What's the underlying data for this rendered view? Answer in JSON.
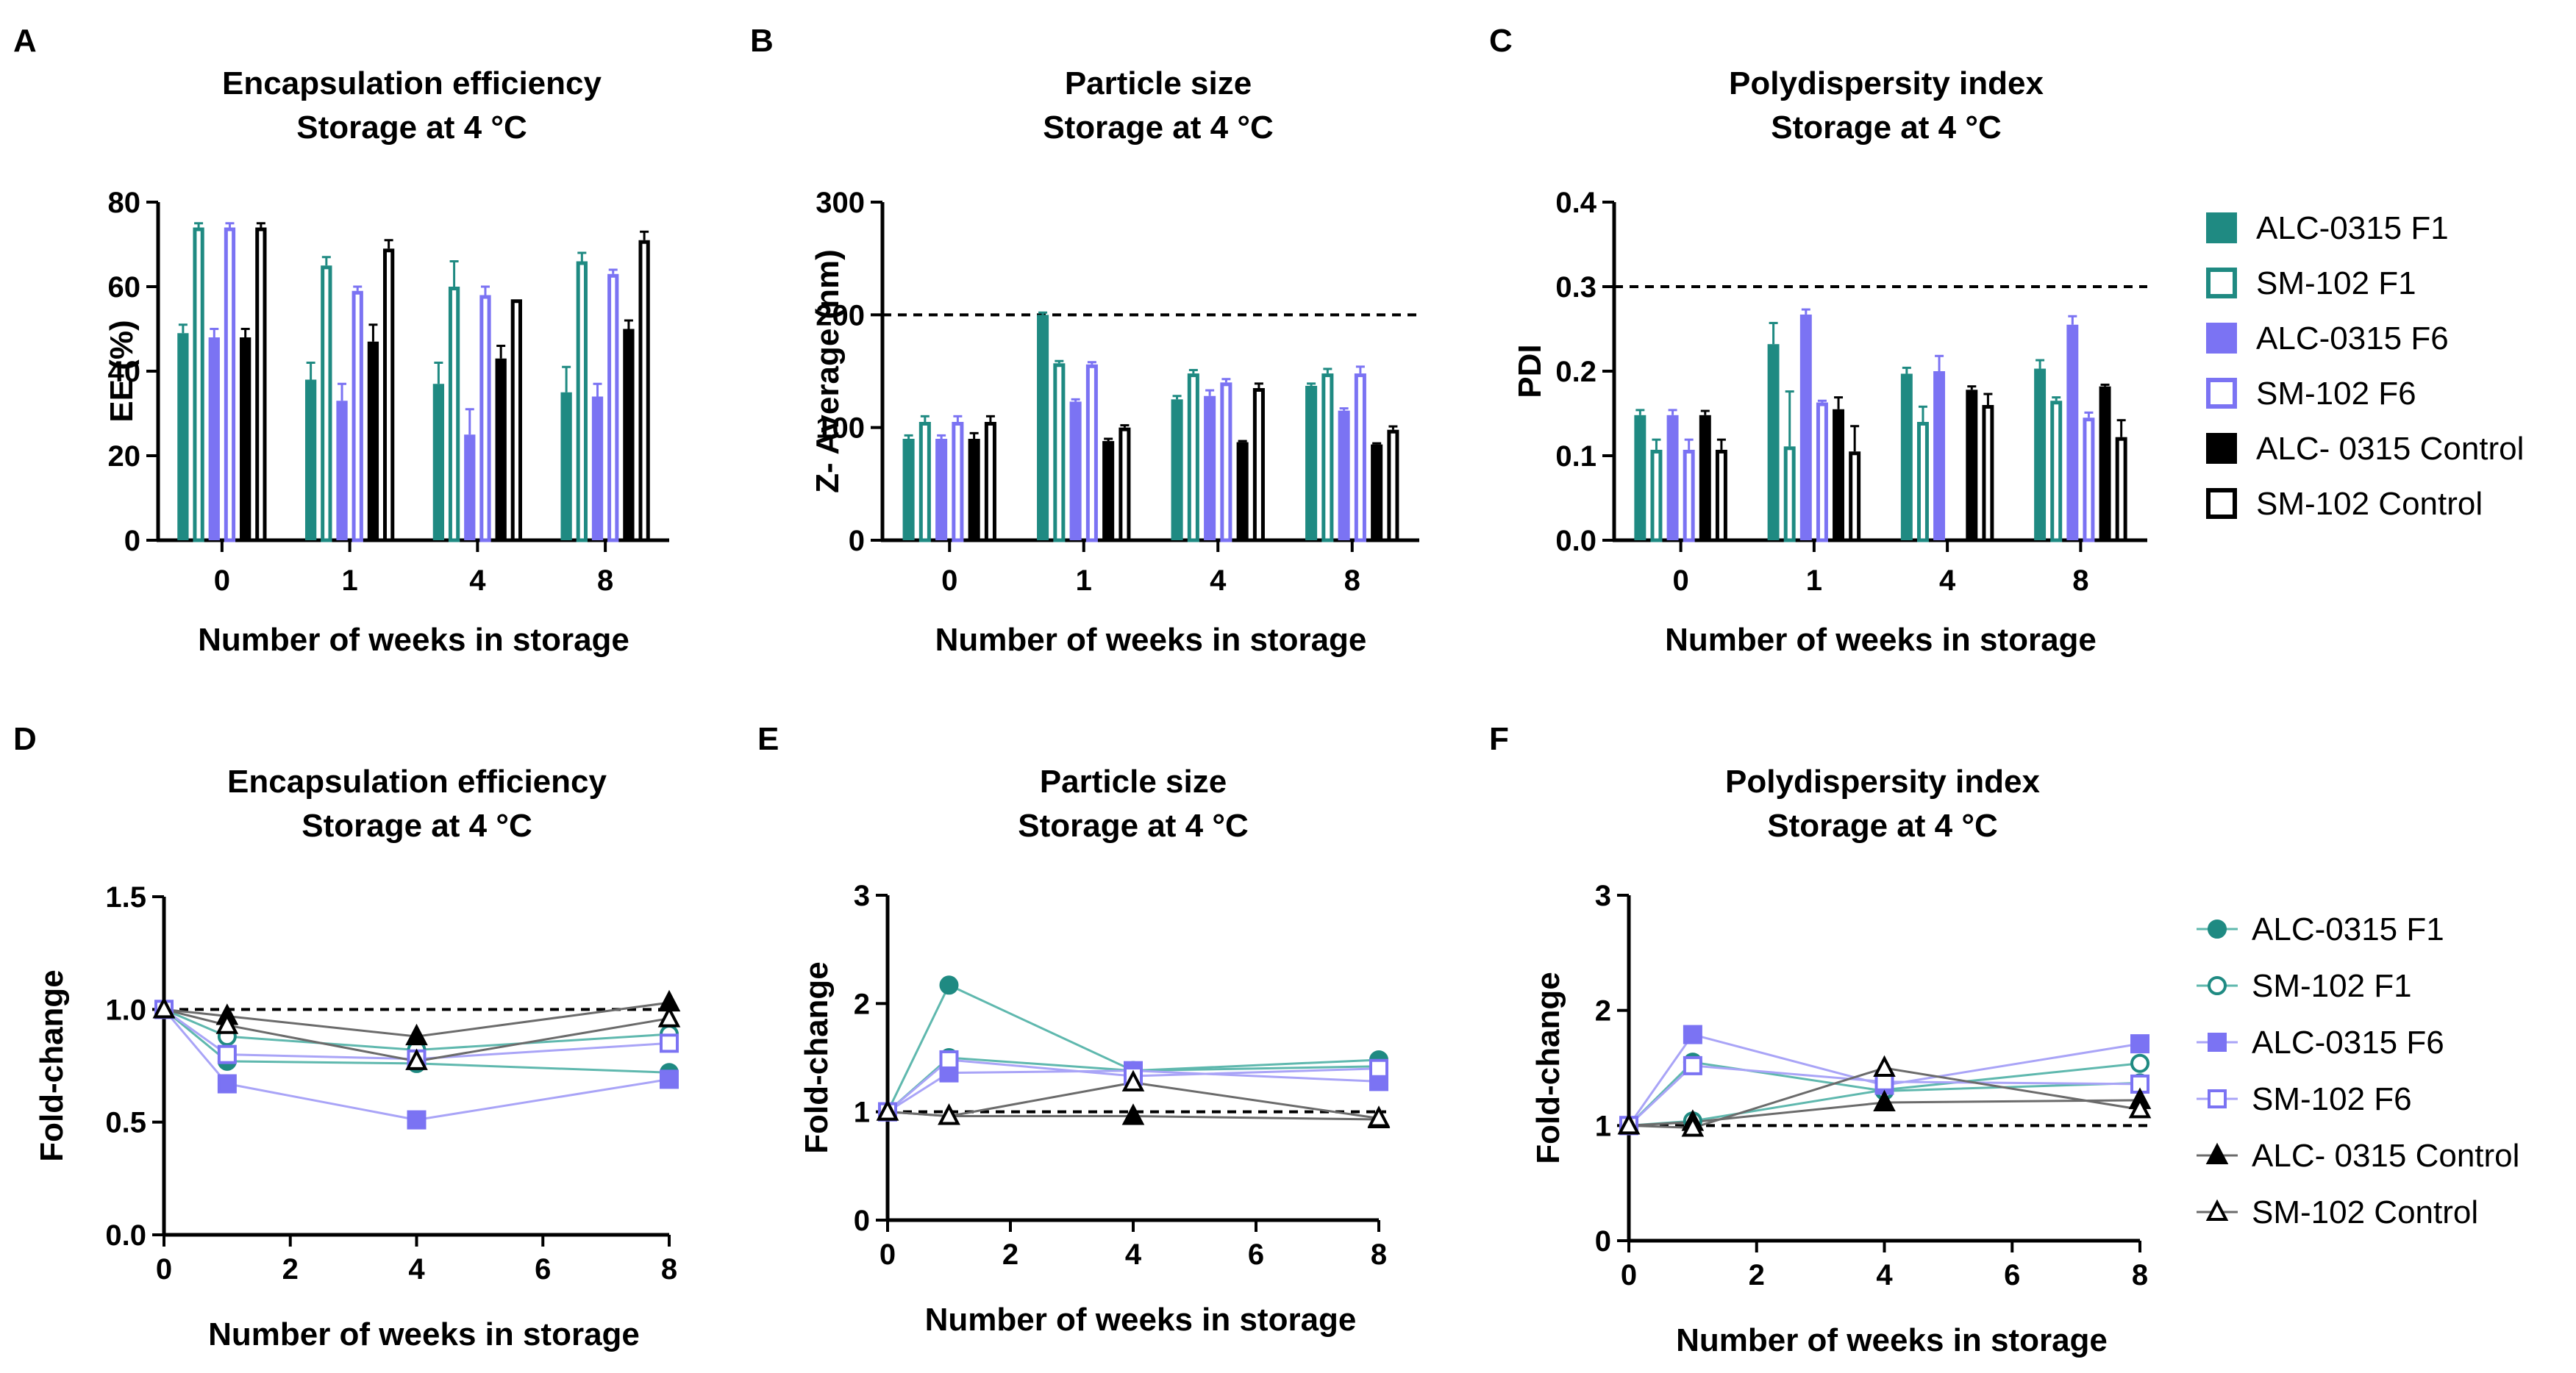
{
  "colors": {
    "alc_f1": "#1f8a82",
    "sm_f1": "#1f8a82",
    "alc_f6": "#7b73f3",
    "sm_f6": "#7b73f3",
    "alc_ctrl": "#000000",
    "sm_ctrl": "#000000",
    "line_alc_f1": "#5fb8ae",
    "line_f6": "#a9a4f7",
    "line_ctrl": "#6b6b6b"
  },
  "legend_top": {
    "items": [
      {
        "key": "alc_f1",
        "label": "ALC-0315 F1",
        "style": "filled"
      },
      {
        "key": "sm_f1",
        "label": "SM-102 F1",
        "style": "open"
      },
      {
        "key": "alc_f6",
        "label": "ALC-0315 F6",
        "style": "filled"
      },
      {
        "key": "sm_f6",
        "label": "SM-102 F6",
        "style": "open"
      },
      {
        "key": "alc_ctrl",
        "label": "ALC- 0315 Control",
        "style": "filled"
      },
      {
        "key": "sm_ctrl",
        "label": "SM-102 Control",
        "style": "open"
      }
    ]
  },
  "legend_bottom": {
    "items": [
      {
        "key": "alc_f1",
        "label": "ALC-0315 F1",
        "marker": "circle",
        "fill": true
      },
      {
        "key": "sm_f1",
        "label": "SM-102 F1",
        "marker": "circle",
        "fill": false
      },
      {
        "key": "alc_f6",
        "label": "ALC-0315 F6",
        "marker": "square",
        "fill": true
      },
      {
        "key": "sm_f6",
        "label": "SM-102 F6",
        "marker": "square",
        "fill": false
      },
      {
        "key": "alc_ctrl",
        "label": "ALC- 0315 Control",
        "marker": "triangle",
        "fill": true
      },
      {
        "key": "sm_ctrl",
        "label": "SM-102 Control",
        "marker": "triangle",
        "fill": false
      }
    ]
  },
  "chart_data": [
    {
      "panel": "A",
      "type": "bar",
      "title": [
        "Encapsulation efficiency",
        "Storage at 4 °C"
      ],
      "xlabel": "Number of weeks in storage",
      "ylabel": "EE (%)",
      "categories": [
        "0",
        "1",
        "4",
        "8"
      ],
      "ylim": [
        0,
        80
      ],
      "yticks": [
        0,
        20,
        40,
        60,
        80
      ],
      "reference": null,
      "series": [
        {
          "key": "alc_f1",
          "name": "ALC-0315 F1",
          "values": [
            49,
            38,
            37,
            35
          ],
          "errors": [
            2,
            4,
            5,
            6
          ]
        },
        {
          "key": "sm_f1",
          "name": "SM-102 F1",
          "values": [
            74,
            65,
            60,
            66
          ],
          "errors": [
            1,
            2,
            6,
            2
          ]
        },
        {
          "key": "alc_f6",
          "name": "ALC-0315 F6",
          "values": [
            48,
            33,
            25,
            34
          ],
          "errors": [
            2,
            4,
            6,
            3
          ]
        },
        {
          "key": "sm_f6",
          "name": "SM-102 F6",
          "values": [
            74,
            59,
            58,
            63
          ],
          "errors": [
            1,
            1,
            2,
            1
          ]
        },
        {
          "key": "alc_ctrl",
          "name": "ALC- 0315 Control",
          "values": [
            48,
            47,
            43,
            50
          ],
          "errors": [
            2,
            4,
            3,
            2
          ]
        },
        {
          "key": "sm_ctrl",
          "name": "SM-102 Control",
          "values": [
            74,
            69,
            57,
            71
          ],
          "errors": [
            1,
            2,
            0,
            2
          ]
        }
      ]
    },
    {
      "panel": "B",
      "type": "bar",
      "title": [
        "Particle size",
        "Storage at 4 °C"
      ],
      "xlabel": "Number of weeks in storage",
      "ylabel": "Z- Average (nm)",
      "categories": [
        "0",
        "1",
        "4",
        "8"
      ],
      "ylim": [
        0,
        300
      ],
      "yticks": [
        0,
        100,
        200,
        300
      ],
      "reference": 200,
      "series": [
        {
          "key": "alc_f1",
          "name": "ALC-0315 F1",
          "values": [
            90,
            200,
            125,
            137
          ],
          "errors": [
            3,
            2,
            3,
            2
          ]
        },
        {
          "key": "sm_f1",
          "name": "SM-102 F1",
          "values": [
            105,
            157,
            148,
            148
          ],
          "errors": [
            5,
            2,
            3,
            4
          ]
        },
        {
          "key": "alc_f6",
          "name": "ALC-0315 F6",
          "values": [
            90,
            123,
            128,
            115
          ],
          "errors": [
            3,
            2,
            5,
            2
          ]
        },
        {
          "key": "sm_f6",
          "name": "SM-102 F6",
          "values": [
            105,
            156,
            140,
            148
          ],
          "errors": [
            5,
            2,
            3,
            6
          ]
        },
        {
          "key": "alc_ctrl",
          "name": "ALC- 0315 Control",
          "values": [
            90,
            88,
            87,
            85
          ],
          "errors": [
            5,
            2,
            1,
            1
          ]
        },
        {
          "key": "sm_ctrl",
          "name": "SM-102 Control",
          "values": [
            105,
            100,
            135,
            98
          ],
          "errors": [
            5,
            2,
            4,
            3
          ]
        }
      ]
    },
    {
      "panel": "C",
      "type": "bar",
      "title": [
        "Polydispersity index",
        "Storage at 4 °C"
      ],
      "xlabel": "Number of weeks in storage",
      "ylabel": "PDI",
      "categories": [
        "0",
        "1",
        "4",
        "8"
      ],
      "ylim": [
        0,
        0.4
      ],
      "yticks": [
        0.0,
        0.1,
        0.2,
        0.3,
        0.4
      ],
      "tick_decimals": 1,
      "reference": 0.3,
      "series": [
        {
          "key": "alc_f1",
          "name": "ALC-0315 F1",
          "values": [
            0.148,
            0.232,
            0.197,
            0.203
          ],
          "errors": [
            0.006,
            0.025,
            0.007,
            0.01
          ]
        },
        {
          "key": "sm_f1",
          "name": "SM-102 F1",
          "values": [
            0.107,
            0.111,
            0.14,
            0.165
          ],
          "errors": [
            0.012,
            0.065,
            0.018,
            0.004
          ]
        },
        {
          "key": "alc_f6",
          "name": "ALC-0315 F6",
          "values": [
            0.148,
            0.267,
            0.2,
            0.255
          ],
          "errors": [
            0.006,
            0.006,
            0.018,
            0.01
          ]
        },
        {
          "key": "sm_f6",
          "name": "SM-102 F6",
          "values": [
            0.107,
            0.163,
            null,
            0.145
          ],
          "errors": [
            0.012,
            0.002,
            0,
            0.006
          ]
        },
        {
          "key": "alc_ctrl",
          "name": "ALC- 0315 Control",
          "values": [
            0.148,
            0.155,
            0.178,
            0.182
          ],
          "errors": [
            0.005,
            0.014,
            0.004,
            0.002
          ]
        },
        {
          "key": "sm_ctrl",
          "name": "SM-102 Control",
          "values": [
            0.107,
            0.105,
            0.16,
            0.122
          ],
          "errors": [
            0.012,
            0.03,
            0.013,
            0.02
          ]
        }
      ]
    },
    {
      "panel": "D",
      "type": "line",
      "title": [
        "Encapsulation efficiency",
        "Storage at 4 °C"
      ],
      "xlabel": "Number of weeks in storage",
      "ylabel": "Fold-change",
      "x": [
        0,
        1,
        4,
        8
      ],
      "xlim": [
        0,
        8
      ],
      "xticks": [
        0,
        2,
        4,
        6,
        8
      ],
      "ylim": [
        0,
        1.5
      ],
      "yticks": [
        0.0,
        0.5,
        1.0,
        1.5
      ],
      "tick_decimals": 1,
      "reference": 1.0,
      "series": [
        {
          "key": "alc_f1",
          "name": "ALC-0315 F1",
          "values": [
            1.0,
            0.77,
            0.76,
            0.72
          ]
        },
        {
          "key": "sm_f1",
          "name": "SM-102 F1",
          "values": [
            1.0,
            0.88,
            0.82,
            0.89
          ]
        },
        {
          "key": "alc_f6",
          "name": "ALC-0315 F6",
          "values": [
            1.0,
            0.67,
            0.51,
            0.69
          ]
        },
        {
          "key": "sm_f6",
          "name": "SM-102 F6",
          "values": [
            1.0,
            0.8,
            0.78,
            0.85
          ]
        },
        {
          "key": "alc_ctrl",
          "name": "ALC- 0315 Control",
          "values": [
            1.0,
            0.97,
            0.88,
            1.03
          ]
        },
        {
          "key": "sm_ctrl",
          "name": "SM-102 Control",
          "values": [
            1.0,
            0.93,
            0.77,
            0.96
          ]
        }
      ]
    },
    {
      "panel": "E",
      "type": "line",
      "title": [
        "Particle size",
        "Storage at 4 °C"
      ],
      "xlabel": "Number of weeks in storage",
      "ylabel": "Fold-change",
      "x": [
        0,
        1,
        4,
        8
      ],
      "xlim": [
        0,
        8
      ],
      "xticks": [
        0,
        2,
        4,
        6,
        8
      ],
      "ylim": [
        0,
        3
      ],
      "yticks": [
        0,
        1,
        2,
        3
      ],
      "reference": 1,
      "series": [
        {
          "key": "alc_f1",
          "name": "ALC-0315 F1",
          "values": [
            1.0,
            2.17,
            1.38,
            1.48
          ]
        },
        {
          "key": "sm_f1",
          "name": "SM-102 F1",
          "values": [
            1.0,
            1.5,
            1.38,
            1.42
          ]
        },
        {
          "key": "alc_f6",
          "name": "ALC-0315 F6",
          "values": [
            1.0,
            1.36,
            1.38,
            1.28
          ]
        },
        {
          "key": "sm_f6",
          "name": "SM-102 F6",
          "values": [
            1.0,
            1.48,
            1.33,
            1.4
          ]
        },
        {
          "key": "alc_ctrl",
          "name": "ALC- 0315 Control",
          "values": [
            1.0,
            0.96,
            0.96,
            0.93
          ]
        },
        {
          "key": "sm_ctrl",
          "name": "SM-102 Control",
          "values": [
            1.0,
            0.96,
            1.27,
            0.94
          ]
        }
      ]
    },
    {
      "panel": "F",
      "type": "line",
      "title": [
        "Polydispersity index",
        "Storage at 4 °C"
      ],
      "xlabel": "Number of weeks in storage",
      "ylabel": "Fold-change",
      "x": [
        0,
        1,
        4,
        8
      ],
      "xlim": [
        0,
        8
      ],
      "xticks": [
        0,
        2,
        4,
        6,
        8
      ],
      "ylim": [
        0,
        3
      ],
      "yticks": [
        0,
        1,
        2,
        3
      ],
      "reference": 1,
      "series": [
        {
          "key": "alc_f1",
          "name": "ALC-0315 F1",
          "values": [
            1.0,
            1.55,
            1.3,
            1.37
          ]
        },
        {
          "key": "sm_f1",
          "name": "SM-102 F1",
          "values": [
            1.0,
            1.04,
            1.31,
            1.54
          ]
        },
        {
          "key": "alc_f6",
          "name": "ALC-0315 F6",
          "values": [
            1.0,
            1.79,
            1.35,
            1.71
          ]
        },
        {
          "key": "sm_f6",
          "name": "SM-102 F6",
          "values": [
            1.0,
            1.52,
            1.38,
            1.36
          ]
        },
        {
          "key": "alc_ctrl",
          "name": "ALC- 0315 Control",
          "values": [
            1.0,
            1.03,
            1.2,
            1.22
          ]
        },
        {
          "key": "sm_ctrl",
          "name": "SM-102 Control",
          "values": [
            1.0,
            0.98,
            1.5,
            1.14
          ]
        }
      ]
    }
  ]
}
